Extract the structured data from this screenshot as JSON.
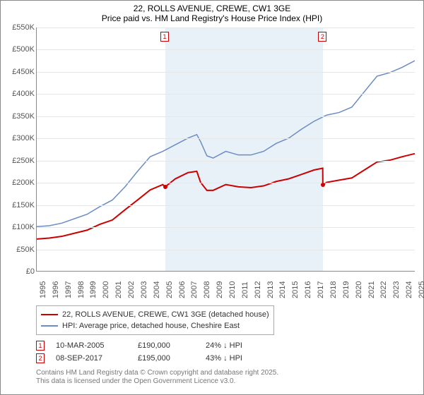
{
  "title_line1": "22, ROLLS AVENUE, CREWE, CW1 3GE",
  "title_line2": "Price paid vs. HM Land Registry's House Price Index (HPI)",
  "chart": {
    "type": "line",
    "background_color": "#ffffff",
    "grid_color": "#e6e6e6",
    "axis_color": "#888888",
    "label_color": "#555555",
    "label_fontsize": 11,
    "x_start_year": 1995,
    "x_end_year": 2025,
    "ylim": [
      0,
      550
    ],
    "ytick_step": 50,
    "ytick_labels": [
      "£0",
      "£50K",
      "£100K",
      "£150K",
      "£200K",
      "£250K",
      "£300K",
      "£350K",
      "£400K",
      "£450K",
      "£500K",
      "£550K"
    ],
    "shaded_band": {
      "from_year": 2005.19,
      "to_year": 2017.69,
      "color": "#e8f1f8"
    },
    "series": [
      {
        "name": "hpi",
        "label": "HPI: Average price, detached house, Cheshire East",
        "color": "#6b8cc4",
        "line_width": 1.5,
        "points": [
          [
            1995,
            100
          ],
          [
            1996,
            102
          ],
          [
            1997,
            108
          ],
          [
            1998,
            118
          ],
          [
            1999,
            128
          ],
          [
            2000,
            145
          ],
          [
            2001,
            160
          ],
          [
            2002,
            190
          ],
          [
            2003,
            225
          ],
          [
            2004,
            258
          ],
          [
            2005,
            270
          ],
          [
            2006,
            285
          ],
          [
            2007,
            300
          ],
          [
            2007.7,
            308
          ],
          [
            2008,
            292
          ],
          [
            2008.5,
            260
          ],
          [
            2009,
            255
          ],
          [
            2010,
            270
          ],
          [
            2011,
            262
          ],
          [
            2012,
            262
          ],
          [
            2013,
            270
          ],
          [
            2014,
            288
          ],
          [
            2015,
            300
          ],
          [
            2016,
            320
          ],
          [
            2017,
            338
          ],
          [
            2018,
            352
          ],
          [
            2019,
            358
          ],
          [
            2020,
            370
          ],
          [
            2021,
            405
          ],
          [
            2022,
            440
          ],
          [
            2023,
            448
          ],
          [
            2024,
            460
          ],
          [
            2025,
            475
          ]
        ]
      },
      {
        "name": "price_paid",
        "label": "22, ROLLS AVENUE, CREWE, CW1 3GE (detached house)",
        "color": "#cc0000",
        "line_width": 2,
        "points": [
          [
            1995,
            72
          ],
          [
            1996,
            74
          ],
          [
            1997,
            78
          ],
          [
            1998,
            85
          ],
          [
            1999,
            92
          ],
          [
            2000,
            105
          ],
          [
            2001,
            115
          ],
          [
            2002,
            138
          ],
          [
            2003,
            160
          ],
          [
            2004,
            183
          ],
          [
            2005,
            195
          ],
          [
            2005.19,
            190
          ],
          [
            2006,
            208
          ],
          [
            2007,
            222
          ],
          [
            2007.7,
            225
          ],
          [
            2008,
            200
          ],
          [
            2008.5,
            182
          ],
          [
            2009,
            182
          ],
          [
            2010,
            195
          ],
          [
            2011,
            190
          ],
          [
            2012,
            188
          ],
          [
            2013,
            192
          ],
          [
            2014,
            202
          ],
          [
            2015,
            208
          ],
          [
            2016,
            218
          ],
          [
            2017,
            228
          ],
          [
            2017.69,
            232
          ],
          [
            2017.7,
            195
          ],
          [
            2018,
            200
          ],
          [
            2019,
            205
          ],
          [
            2020,
            210
          ],
          [
            2021,
            228
          ],
          [
            2022,
            246
          ],
          [
            2023,
            250
          ],
          [
            2024,
            258
          ],
          [
            2025,
            265
          ]
        ]
      }
    ],
    "sale_markers": [
      {
        "label": "1",
        "year": 2005.19,
        "value_k": 190
      },
      {
        "label": "2",
        "year": 2017.69,
        "value_k": 195
      }
    ]
  },
  "legend_items": [
    {
      "color": "#cc0000",
      "width": 2,
      "text": "22, ROLLS AVENUE, CREWE, CW1 3GE (detached house)"
    },
    {
      "color": "#6b8cc4",
      "width": 1.5,
      "text": "HPI: Average price, detached house, Cheshire East"
    }
  ],
  "sales_table": [
    {
      "marker": "1",
      "date": "10-MAR-2005",
      "price": "£190,000",
      "delta": "24% ↓ HPI"
    },
    {
      "marker": "2",
      "date": "08-SEP-2017",
      "price": "£195,000",
      "delta": "43% ↓ HPI"
    }
  ],
  "footer_line1": "Contains HM Land Registry data © Crown copyright and database right 2025.",
  "footer_line2": "This data is licensed under the Open Government Licence v3.0."
}
